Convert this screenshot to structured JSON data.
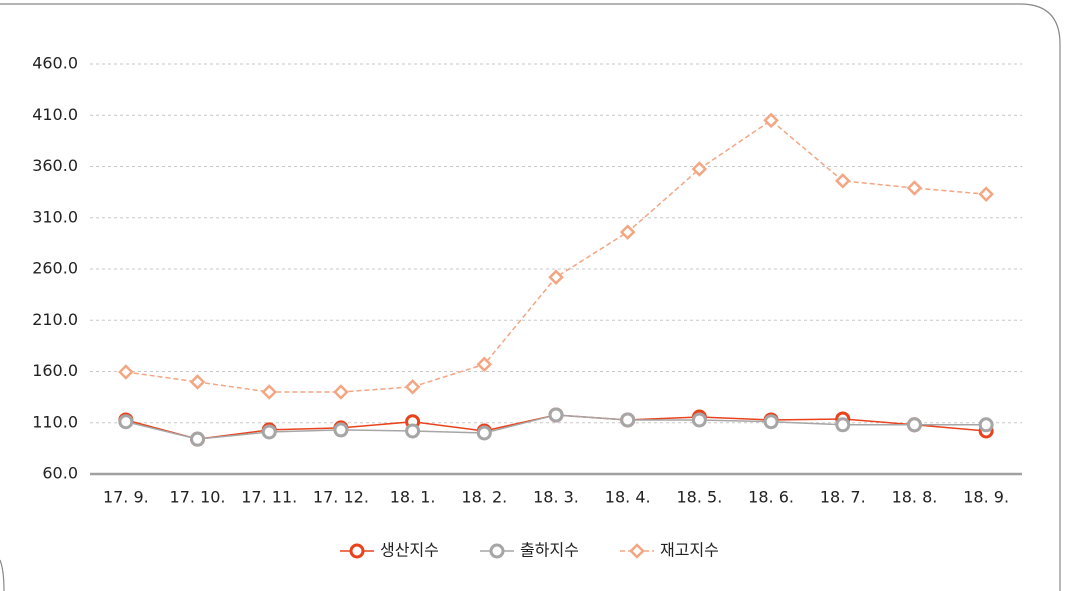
{
  "chart_data": {
    "type": "line",
    "categories": [
      "17. 9.",
      "17. 10.",
      "17. 11.",
      "17. 12.",
      "18. 1.",
      "18. 2.",
      "18. 3.",
      "18. 4.",
      "18. 5.",
      "18. 6.",
      "18. 7.",
      "18. 8.",
      "18. 9."
    ],
    "series": [
      {
        "name": "생산지수",
        "color": "#e8431c",
        "marker": "circle",
        "dashed": false,
        "values": [
          112.7,
          94,
          103,
          105,
          111,
          102,
          117.6,
          112.7,
          115.6,
          112.7,
          113.7,
          108,
          102
        ]
      },
      {
        "name": "출하지수",
        "color": "#a6a6a6",
        "marker": "circle",
        "dashed": false,
        "values": [
          111,
          94,
          101,
          103,
          102,
          100,
          117.6,
          112.7,
          112.7,
          111,
          108,
          108,
          108
        ]
      },
      {
        "name": "재고지수",
        "color": "#f4a582",
        "marker": "diamond",
        "dashed": true,
        "values": [
          159.5,
          149.8,
          140,
          140,
          145,
          167,
          252,
          296,
          357.6,
          405,
          346,
          339,
          333
        ]
      }
    ],
    "ylim": [
      60,
      460
    ],
    "yticks": [
      {
        "value": 60,
        "label": "60.0"
      },
      {
        "value": 110,
        "label": "110.0"
      },
      {
        "value": 160,
        "label": "160.0"
      },
      {
        "value": 210,
        "label": "210.0"
      },
      {
        "value": 260,
        "label": "260.0"
      },
      {
        "value": 310,
        "label": "310.0"
      },
      {
        "value": 360,
        "label": "360.0"
      },
      {
        "value": 410,
        "label": "410.0"
      },
      {
        "value": 460,
        "label": "460.0"
      }
    ],
    "grid": true,
    "legend": "bottom"
  }
}
